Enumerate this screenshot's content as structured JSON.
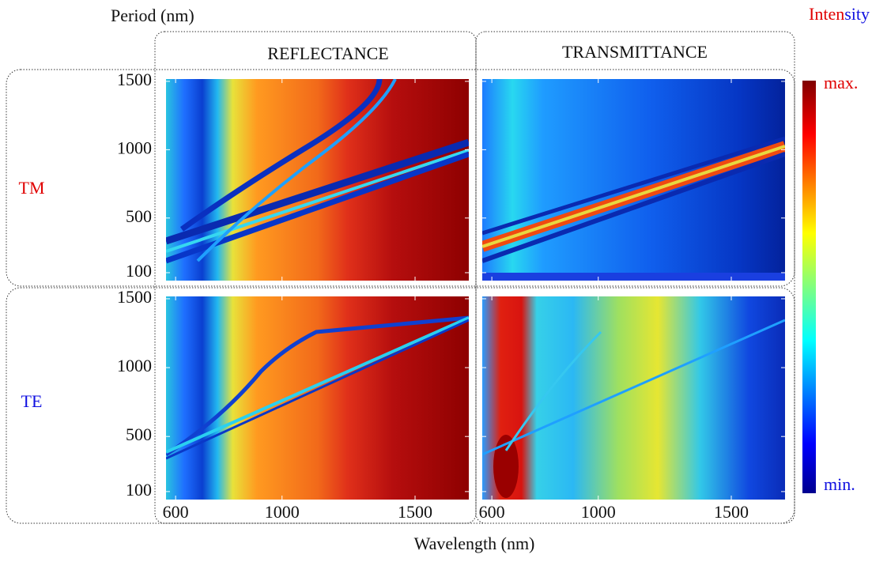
{
  "figure": {
    "y_label": "Period (nm)",
    "x_label": "Wavelength (nm)",
    "colorbar": {
      "title_parts": [
        "Inten",
        "sity"
      ],
      "max_label": "max.",
      "min_label": "min."
    },
    "columns": [
      "REFLECTANCE",
      "TRANSMITTANCE"
    ],
    "rows": [
      "TM",
      "TE"
    ],
    "xlim": [
      564,
      1702
    ],
    "xticks": [
      600,
      1000,
      1500
    ],
    "ylim": [
      42,
      1517
    ],
    "yticks": [
      100,
      500,
      1000,
      1500
    ]
  }
}
